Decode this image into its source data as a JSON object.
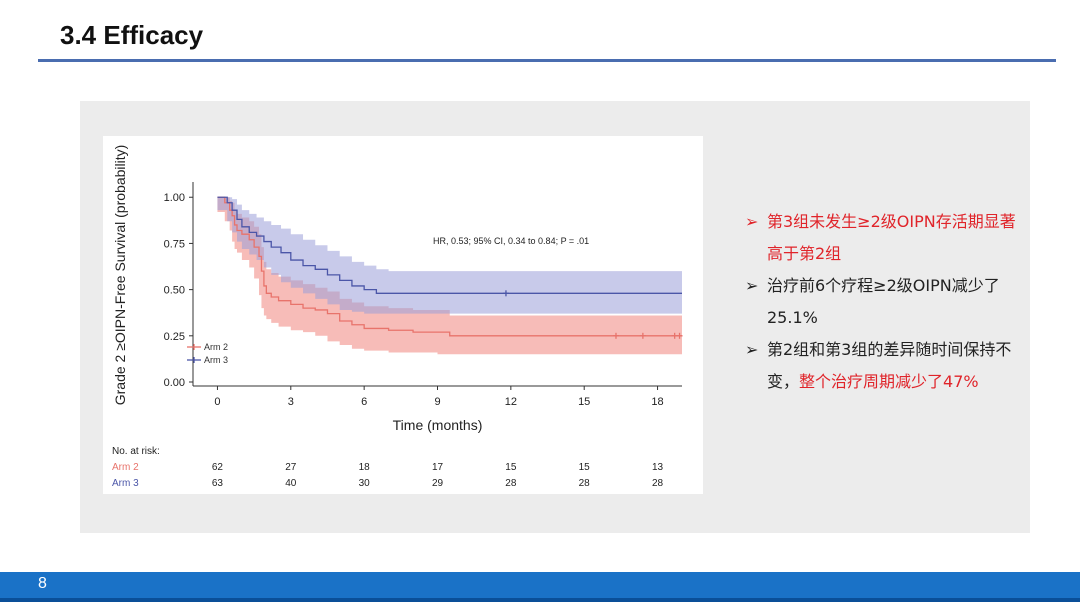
{
  "slide": {
    "title": "3.4 Efficacy",
    "page_number": "8"
  },
  "colors": {
    "accent": "#4a6db0",
    "footer": "#1a72c7",
    "arm2": "#e8736b",
    "arm3": "#4b56a8",
    "highlight": "#e0242a"
  },
  "bullets": [
    {
      "icon": "arrow-bullet-icon",
      "parts": [
        {
          "text": "第3组未发生≥2级OIPN存活期显著高于第2组",
          "style": "red"
        }
      ]
    },
    {
      "icon": "arrow-bullet-icon",
      "parts": [
        {
          "text": "治疗前6个疗程≥2级OIPN减少了25.1%",
          "style": "dark"
        }
      ]
    },
    {
      "icon": "arrow-bullet-icon",
      "parts": [
        {
          "text": "第2组和第3组的差异随时间保持不变，",
          "style": "dark"
        },
        {
          "text": "整个治疗周期减少了47%",
          "style": "red"
        }
      ]
    }
  ],
  "chart_data": {
    "type": "line",
    "subtype": "kaplan-meier",
    "ylabel": "Grade 2 ≥OIPN-Free Survival (probability)",
    "xlabel": "Time (months)",
    "xlim": [
      -1,
      19
    ],
    "ylim": [
      0,
      1.05
    ],
    "xticks": [
      0,
      3,
      6,
      9,
      12,
      15,
      18
    ],
    "yticks": [
      0,
      0.25,
      0.5,
      0.75,
      1.0
    ],
    "ytick_labels": [
      "0.00",
      "0.25",
      "0.50",
      "0.75",
      "1.00"
    ],
    "annotation": "HR, 0.53; 95% CI, 0.34 to 0.84; P = .01",
    "legend": {
      "placement": "bottom-left"
    },
    "series": [
      {
        "name": "Arm 2",
        "color": "#e8736b",
        "band_color": "#f4a6a0",
        "x": [
          0,
          0.3,
          0.5,
          0.6,
          0.7,
          0.8,
          1.0,
          1.3,
          1.5,
          1.7,
          1.8,
          1.9,
          2.0,
          2.2,
          2.5,
          3.0,
          3.5,
          4.0,
          4.5,
          5.0,
          5.5,
          6.0,
          7.0,
          8.0,
          9.0,
          9.5,
          19
        ],
        "y": [
          1.0,
          0.97,
          0.93,
          0.9,
          0.85,
          0.82,
          0.8,
          0.77,
          0.73,
          0.68,
          0.6,
          0.52,
          0.48,
          0.46,
          0.44,
          0.42,
          0.4,
          0.39,
          0.37,
          0.33,
          0.31,
          0.29,
          0.28,
          0.27,
          0.27,
          0.25,
          0.25
        ],
        "ci_lower": [
          1.0,
          0.92,
          0.87,
          0.82,
          0.76,
          0.72,
          0.7,
          0.66,
          0.62,
          0.56,
          0.47,
          0.4,
          0.36,
          0.34,
          0.32,
          0.3,
          0.28,
          0.27,
          0.25,
          0.22,
          0.2,
          0.18,
          0.17,
          0.16,
          0.16,
          0.15,
          0.15
        ],
        "ci_upper": [
          1.0,
          1.0,
          0.98,
          0.97,
          0.93,
          0.91,
          0.89,
          0.87,
          0.84,
          0.8,
          0.73,
          0.65,
          0.61,
          0.59,
          0.57,
          0.55,
          0.53,
          0.51,
          0.49,
          0.45,
          0.43,
          0.41,
          0.4,
          0.39,
          0.39,
          0.36,
          0.36
        ],
        "censored": [
          16.3,
          17.4,
          18.7,
          18.9
        ]
      },
      {
        "name": "Arm 3",
        "color": "#4b56a8",
        "band_color": "#9b9fd8",
        "x": [
          0,
          0.4,
          0.6,
          0.8,
          1.0,
          1.3,
          1.6,
          1.9,
          2.2,
          2.6,
          3.0,
          3.5,
          4.0,
          4.5,
          5.0,
          5.5,
          6.0,
          6.5,
          7.0,
          19
        ],
        "y": [
          1.0,
          0.97,
          0.93,
          0.88,
          0.84,
          0.81,
          0.79,
          0.76,
          0.73,
          0.7,
          0.66,
          0.63,
          0.61,
          0.58,
          0.55,
          0.52,
          0.5,
          0.48,
          0.48,
          0.48
        ],
        "ci_lower": [
          1.0,
          0.93,
          0.87,
          0.81,
          0.76,
          0.72,
          0.69,
          0.66,
          0.62,
          0.58,
          0.54,
          0.51,
          0.48,
          0.45,
          0.42,
          0.39,
          0.38,
          0.37,
          0.37,
          0.37
        ],
        "ci_upper": [
          1.0,
          1.0,
          0.99,
          0.96,
          0.93,
          0.91,
          0.89,
          0.87,
          0.85,
          0.83,
          0.8,
          0.77,
          0.74,
          0.71,
          0.68,
          0.65,
          0.63,
          0.61,
          0.6,
          0.6
        ],
        "censored": [
          11.8
        ]
      }
    ],
    "risk_table": {
      "header": "No. at risk:",
      "times": [
        0,
        3,
        6,
        9,
        12,
        15,
        18
      ],
      "rows": [
        {
          "label": "Arm 2",
          "values": [
            62,
            27,
            18,
            17,
            15,
            15,
            13
          ]
        },
        {
          "label": "Arm 3",
          "values": [
            63,
            40,
            30,
            29,
            28,
            28,
            28
          ]
        }
      ]
    }
  }
}
